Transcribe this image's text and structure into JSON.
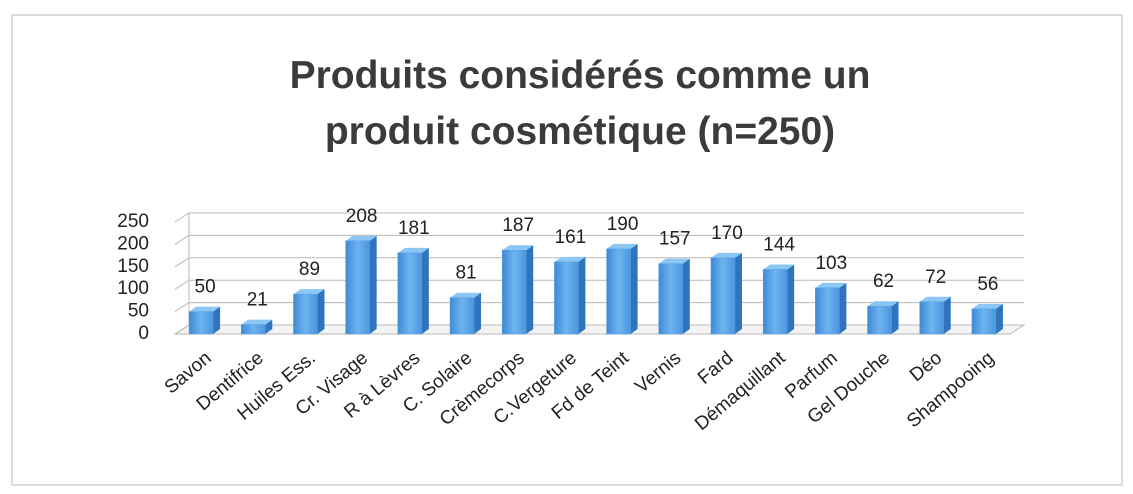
{
  "chart_data": {
    "type": "bar",
    "title": "Produits considérés comme un produit cosmétique (n=250)",
    "categories": [
      "Savon",
      "Dentifrice",
      "Huiles Ess.",
      "Cr. Visage",
      "R à Lèvres",
      "C. Solaire",
      "Crèmecorps",
      "C.Vergeture",
      "Fd de Teint",
      "Vernis",
      "Fard",
      "Démaquillant",
      "Parfum",
      "Gel Douche",
      "Déo",
      "Shampooing"
    ],
    "values": [
      50,
      21,
      89,
      208,
      181,
      81,
      187,
      161,
      190,
      157,
      170,
      144,
      103,
      62,
      72,
      56
    ],
    "color": "#4f9de0",
    "ylim": [
      0,
      250
    ],
    "yticks": [
      0,
      50,
      100,
      150,
      200,
      250
    ],
    "grid": true
  }
}
